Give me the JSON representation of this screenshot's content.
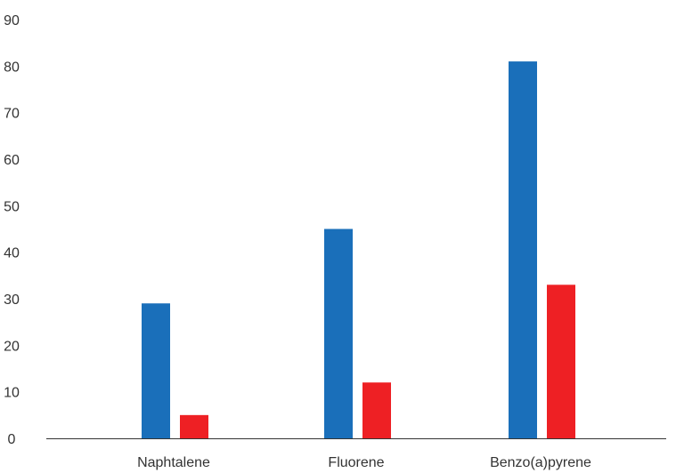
{
  "chart_data": {
    "type": "bar",
    "categories": [
      "Naphtalene",
      "Fluorene",
      "Benzo(a)pyrene"
    ],
    "series": [
      {
        "values": [
          29,
          45,
          81
        ],
        "color": "#1a6fba"
      },
      {
        "values": [
          5,
          12,
          33
        ],
        "color": "#ee2024"
      }
    ],
    "ylim": [
      0,
      90
    ],
    "yticks": [
      "0",
      "10",
      "20",
      "30",
      "40",
      "50",
      "60",
      "70",
      "80",
      "90"
    ],
    "grid": false,
    "axis_color": "#333333"
  }
}
